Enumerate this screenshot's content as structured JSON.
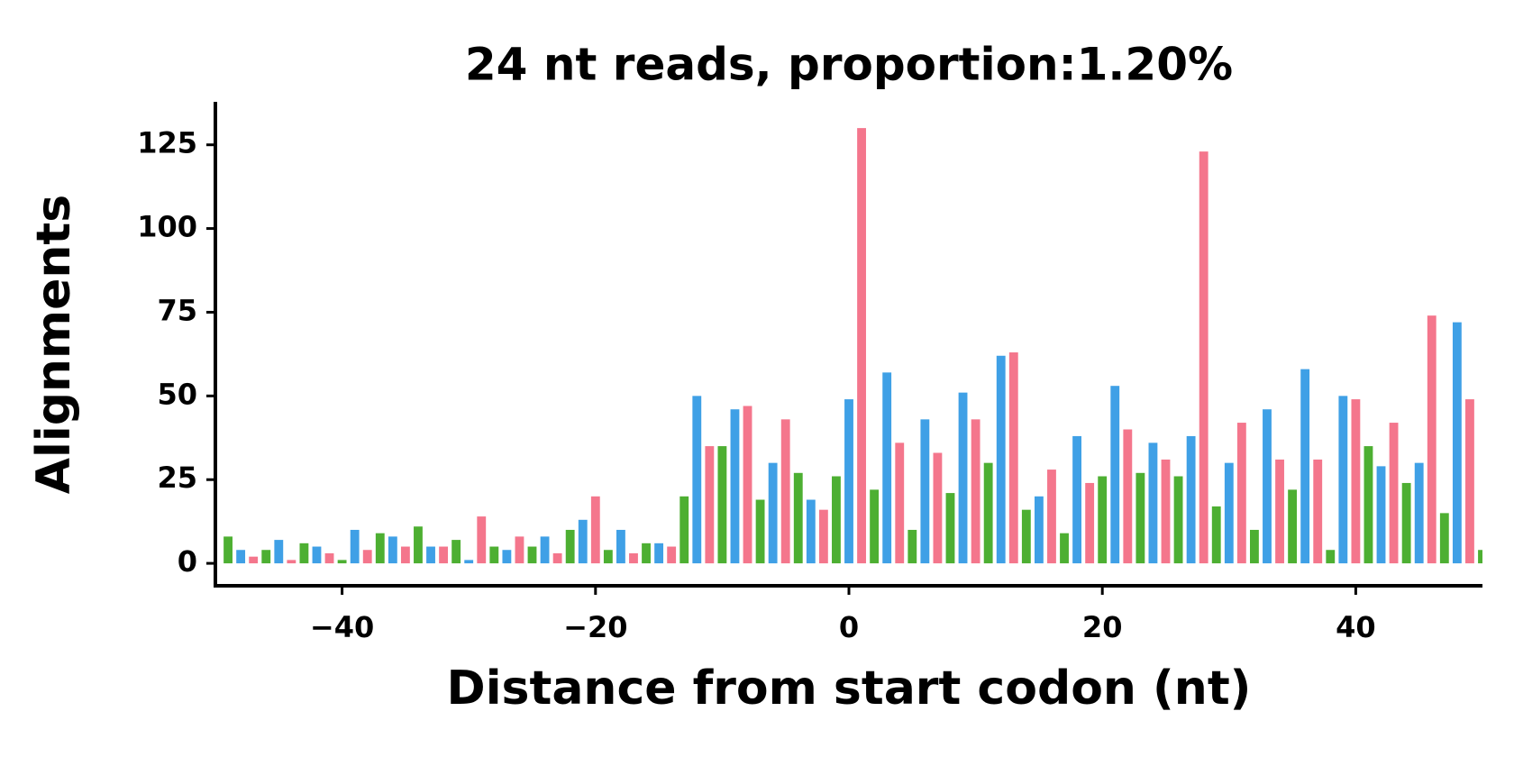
{
  "chart_data": {
    "type": "bar",
    "title": "24 nt reads, proportion:1.20%",
    "xlabel": "Distance from start codon (nt)",
    "ylabel": "Alignments",
    "x": [
      -49,
      -48,
      -47,
      -46,
      -45,
      -44,
      -43,
      -42,
      -41,
      -40,
      -39,
      -38,
      -37,
      -36,
      -35,
      -34,
      -33,
      -32,
      -31,
      -30,
      -29,
      -28,
      -27,
      -26,
      -25,
      -24,
      -23,
      -22,
      -21,
      -20,
      -19,
      -18,
      -17,
      -16,
      -15,
      -14,
      -13,
      -12,
      -11,
      -10,
      -9,
      -8,
      -7,
      -6,
      -5,
      -4,
      -3,
      -2,
      -1,
      0,
      1,
      2,
      3,
      4,
      5,
      6,
      7,
      8,
      9,
      10,
      11,
      12,
      13,
      14,
      15,
      16,
      17,
      18,
      19,
      20,
      21,
      22,
      23,
      24,
      25,
      26,
      27,
      28,
      29,
      30,
      31,
      32,
      33,
      34,
      35,
      36,
      37,
      38,
      39,
      40,
      41,
      42,
      43,
      44,
      45,
      46,
      47,
      48,
      49,
      50
    ],
    "values": [
      8,
      4,
      2,
      4,
      7,
      1,
      6,
      5,
      3,
      1,
      10,
      4,
      9,
      8,
      5,
      11,
      5,
      5,
      7,
      1,
      14,
      5,
      4,
      8,
      5,
      8,
      3,
      10,
      13,
      20,
      4,
      10,
      3,
      6,
      6,
      5,
      20,
      50,
      35,
      35,
      46,
      47,
      19,
      30,
      43,
      27,
      19,
      16,
      26,
      49,
      130,
      22,
      57,
      36,
      10,
      43,
      33,
      21,
      51,
      43,
      30,
      62,
      63,
      16,
      20,
      28,
      9,
      38,
      24,
      26,
      53,
      40,
      27,
      36,
      31,
      26,
      38,
      123,
      17,
      30,
      42,
      10,
      46,
      31,
      22,
      58,
      31,
      4,
      50,
      49,
      35,
      29,
      42,
      24,
      30,
      74,
      15,
      72,
      49,
      4
    ],
    "colors": [
      "#4daf32",
      "#3fa0e6",
      "#f4768c",
      "#4daf32",
      "#3fa0e6",
      "#f4768c",
      "#4daf32",
      "#3fa0e6",
      "#f4768c",
      "#4daf32",
      "#3fa0e6",
      "#f4768c",
      "#4daf32",
      "#3fa0e6",
      "#f4768c",
      "#4daf32",
      "#3fa0e6",
      "#f4768c",
      "#4daf32",
      "#3fa0e6",
      "#f4768c",
      "#4daf32",
      "#3fa0e6",
      "#f4768c",
      "#4daf32",
      "#3fa0e6",
      "#f4768c",
      "#4daf32",
      "#3fa0e6",
      "#f4768c",
      "#4daf32",
      "#3fa0e6",
      "#f4768c",
      "#4daf32",
      "#3fa0e6",
      "#f4768c",
      "#4daf32",
      "#3fa0e6",
      "#f4768c",
      "#4daf32",
      "#3fa0e6",
      "#f4768c",
      "#4daf32",
      "#3fa0e6",
      "#f4768c",
      "#4daf32",
      "#3fa0e6",
      "#f4768c",
      "#4daf32",
      "#3fa0e6",
      "#f4768c",
      "#4daf32",
      "#3fa0e6",
      "#f4768c",
      "#4daf32",
      "#3fa0e6",
      "#f4768c",
      "#4daf32",
      "#3fa0e6",
      "#f4768c",
      "#4daf32",
      "#3fa0e6",
      "#f4768c",
      "#4daf32",
      "#3fa0e6",
      "#f4768c",
      "#4daf32",
      "#3fa0e6",
      "#f4768c",
      "#4daf32",
      "#3fa0e6",
      "#f4768c",
      "#4daf32",
      "#3fa0e6",
      "#f4768c",
      "#4daf32",
      "#3fa0e6",
      "#f4768c",
      "#4daf32",
      "#3fa0e6",
      "#f4768c",
      "#4daf32",
      "#3fa0e6",
      "#f4768c",
      "#4daf32",
      "#3fa0e6",
      "#f4768c",
      "#4daf32",
      "#3fa0e6",
      "#f4768c",
      "#4daf32",
      "#3fa0e6",
      "#f4768c",
      "#4daf32",
      "#3fa0e6",
      "#f4768c",
      "#4daf32",
      "#3fa0e6",
      "#f4768c",
      "#4daf32"
    ],
    "xlim": [
      -50,
      50
    ],
    "xticks": [
      {
        "value": -40,
        "label": "−40"
      },
      {
        "value": -20,
        "label": "−20"
      },
      0,
      20,
      40
    ],
    "ylim": [
      -6.7,
      137.3
    ],
    "yticks": [
      0,
      25,
      50,
      75,
      100,
      125
    ]
  }
}
